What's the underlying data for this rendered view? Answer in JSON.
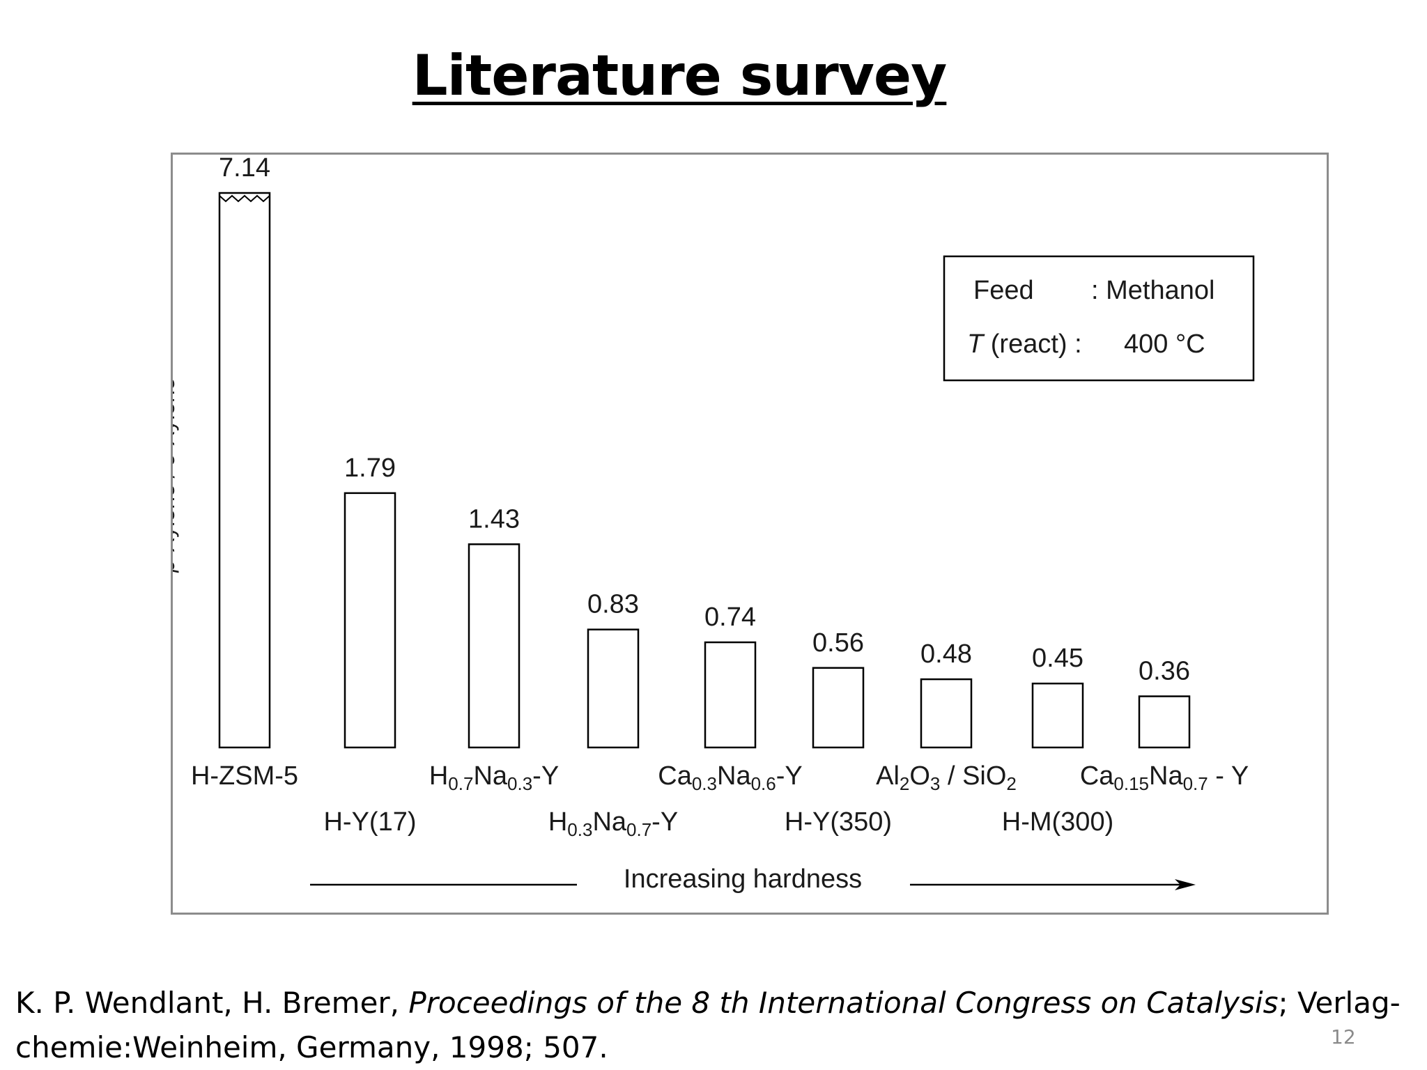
{
  "slide": {
    "title": "Literature survey",
    "page_number": "12"
  },
  "chart_data": {
    "type": "bar",
    "ylabel_parts": [
      "p",
      "-Xylene / ",
      "o",
      "-Xylene"
    ],
    "categories": [
      {
        "label": [
          "H-ZSM-5"
        ]
      },
      {
        "label": [
          "H-Y(17)"
        ]
      },
      {
        "label": [
          "H",
          "0.7",
          "Na",
          "0.3",
          "-Y"
        ]
      },
      {
        "label": [
          "H",
          "0.3",
          "Na",
          "0.7",
          "-Y"
        ]
      },
      {
        "label": [
          "Ca",
          "0.3",
          "Na",
          "0.6",
          "-Y"
        ]
      },
      {
        "label": [
          "H-Y(350)"
        ]
      },
      {
        "label": [
          "Al",
          "2",
          "O",
          "3",
          " / SiO",
          "2"
        ]
      },
      {
        "label": [
          "H-M(300)"
        ]
      },
      {
        "label": [
          "Ca",
          "0.15",
          "Na",
          "0.7",
          " - Y"
        ]
      }
    ],
    "values": [
      7.14,
      1.79,
      1.43,
      0.83,
      0.74,
      0.56,
      0.48,
      0.45,
      0.36
    ],
    "value_labels": [
      "7.14",
      "1.79",
      "1.43",
      "0.83",
      "0.74",
      "0.56",
      "0.48",
      "0.45",
      "0.36"
    ],
    "axis_break_on": "H-ZSM-5",
    "legend_box": {
      "feed_label": "Feed",
      "feed_value": ": Methanol",
      "temp_label_italic": "T",
      "temp_label_rest": " (react) :",
      "temp_value": "400 °C"
    },
    "x_annotation": "Increasing hardness",
    "grid": false
  },
  "citation": {
    "authors": "K. P. Wendlant, H. Bremer, ",
    "journal": "Proceedings of the 8 th International Congress on Catalysis",
    "rest": "; Verlag-chemie:Weinheim, Germany, 1998; 507."
  }
}
